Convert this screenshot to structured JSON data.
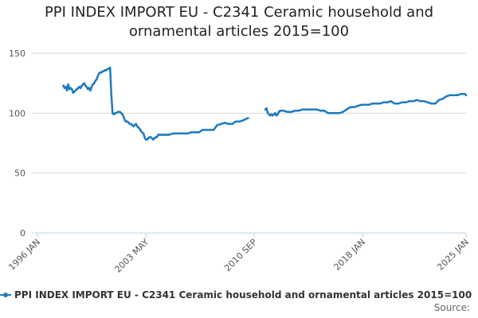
{
  "title_lines": [
    "PPI INDEX IMPORT EU - C2341 Ceramic household and",
    "ornamental articles 2015=100"
  ],
  "legend_label": "PPI INDEX IMPORT EU - C2341 Ceramic household and ornamental articles 2015=100",
  "source_label": "Source:",
  "colors": {
    "series": "#1f7bbf",
    "grid": "#d8d8d8",
    "axis": "#c0d0e0"
  },
  "chart_data": {
    "type": "line",
    "title": "PPI INDEX IMPORT EU - C2341 Ceramic household and ornamental articles 2015=100",
    "xlabel": "",
    "ylabel": "",
    "x_tick_labels": [
      "1996 JAN",
      "2003 MAY",
      "2010 SEP",
      "2018 JAN",
      "2025 JAN"
    ],
    "x_ticks": [
      "1996-01",
      "2003-05",
      "2010-09",
      "2018-01",
      "2025-01"
    ],
    "xlim": [
      "1996-01",
      "2025-01"
    ],
    "y_ticks": [
      0,
      50,
      100,
      150
    ],
    "ylim": [
      0,
      150
    ],
    "grid": "horizontal",
    "legend_position": "bottom",
    "series": [
      {
        "name": "PPI INDEX IMPORT EU - C2341 Ceramic household and ornamental articles 2015=100",
        "segments": [
          {
            "x": [
              "1997-10",
              "1997-11",
              "1997-12",
              "1998-01",
              "1998-02",
              "1998-03",
              "1998-04",
              "1998-05",
              "1998-06",
              "1998-07",
              "1998-08",
              "1998-09",
              "1998-10",
              "1998-11",
              "1998-12",
              "1999-01",
              "1999-02",
              "1999-03",
              "1999-04",
              "1999-05",
              "1999-06",
              "1999-07",
              "1999-08",
              "1999-09",
              "1999-10",
              "1999-11",
              "1999-12",
              "2000-01",
              "2000-02",
              "2000-03",
              "2000-04",
              "2000-05",
              "2000-06",
              "2000-07",
              "2000-08",
              "2000-09",
              "2000-10",
              "2000-11",
              "2000-12",
              "2001-01",
              "2001-02",
              "2001-03",
              "2001-04",
              "2001-05",
              "2001-06",
              "2001-07",
              "2001-08",
              "2001-09",
              "2001-10",
              "2001-11",
              "2001-12",
              "2002-01",
              "2002-02",
              "2002-03",
              "2002-04",
              "2002-05",
              "2002-06",
              "2002-07",
              "2002-08",
              "2002-09",
              "2002-10",
              "2002-11",
              "2002-12",
              "2003-01",
              "2003-02",
              "2003-03",
              "2003-04",
              "2003-05",
              "2003-06",
              "2003-07",
              "2003-08",
              "2003-09",
              "2003-10",
              "2003-11",
              "2003-12",
              "2004-01",
              "2004-02",
              "2004-03",
              "2004-04",
              "2004-05",
              "2004-06",
              "2004-07",
              "2004-08",
              "2004-09",
              "2004-10",
              "2004-11",
              "2004-12",
              "2005-03",
              "2005-06",
              "2005-09",
              "2005-12",
              "2006-03",
              "2006-06",
              "2006-09",
              "2006-12",
              "2007-03",
              "2007-06",
              "2007-09",
              "2007-12",
              "2008-03",
              "2008-06",
              "2008-09",
              "2008-12",
              "2009-03",
              "2009-06",
              "2009-09",
              "2009-12",
              "2010-02",
              "2010-04"
            ],
            "y": [
              123,
              121,
              122,
              119,
              124,
              120,
              121,
              120,
              117,
              118,
              119,
              120,
              121,
              122,
              121,
              123,
              124,
              125,
              123,
              122,
              120,
              121,
              119,
              122,
              124,
              125,
              127,
              128,
              131,
              133,
              134,
              134,
              135,
              135,
              136,
              136,
              137,
              137,
              138,
              115,
              100,
              99,
              100,
              100,
              101,
              101,
              101,
              100,
              99,
              97,
              94,
              93,
              93,
              92,
              91,
              91,
              90,
              89,
              90,
              91,
              89,
              88,
              87,
              85,
              84,
              83,
              80,
              78,
              78,
              79,
              80,
              80,
              79,
              78,
              79,
              80,
              80,
              82,
              82,
              82,
              82,
              82,
              82,
              82,
              82,
              82,
              82,
              83,
              83,
              83,
              83,
              83,
              84,
              84,
              84,
              86,
              86,
              86,
              86,
              90,
              91,
              92,
              91,
              91,
              93,
              93,
              94,
              95,
              96
            ]
          },
          {
            "x": [
              "2011-06",
              "2011-07",
              "2011-08",
              "2011-09",
              "2011-10",
              "2011-11",
              "2011-12",
              "2012-01",
              "2012-02",
              "2012-03",
              "2012-04",
              "2012-05",
              "2012-06",
              "2012-09",
              "2012-12",
              "2013-03",
              "2013-06",
              "2013-09",
              "2013-12",
              "2014-03",
              "2014-06",
              "2014-09",
              "2014-12",
              "2015-03",
              "2015-06",
              "2015-09",
              "2015-12",
              "2016-03",
              "2016-06",
              "2016-09",
              "2016-12",
              "2017-03",
              "2017-06",
              "2017-09",
              "2017-12",
              "2018-03",
              "2018-06",
              "2018-09",
              "2018-12",
              "2019-03",
              "2019-06",
              "2019-09",
              "2019-12",
              "2020-03",
              "2020-06",
              "2020-09",
              "2020-12",
              "2021-03",
              "2021-06",
              "2021-09",
              "2021-12",
              "2022-03",
              "2022-06",
              "2022-09",
              "2022-12",
              "2023-03",
              "2023-06",
              "2023-09",
              "2023-12",
              "2024-03",
              "2024-06",
              "2024-09",
              "2024-12",
              "2025-01"
            ],
            "y": [
              103,
              104,
              100,
              99,
              98,
              99,
              98,
              99,
              100,
              98,
              99,
              101,
              102,
              102,
              101,
              101,
              102,
              102,
              103,
              103,
              103,
              103,
              103,
              102,
              102,
              100,
              100,
              100,
              100,
              101,
              103,
              105,
              105,
              106,
              107,
              107,
              107,
              108,
              108,
              108,
              109,
              109,
              110,
              108,
              108,
              109,
              109,
              110,
              110,
              111,
              110,
              110,
              109,
              108,
              108,
              111,
              112,
              114,
              115,
              115,
              115,
              116,
              116,
              115
            ]
          }
        ]
      }
    ]
  }
}
